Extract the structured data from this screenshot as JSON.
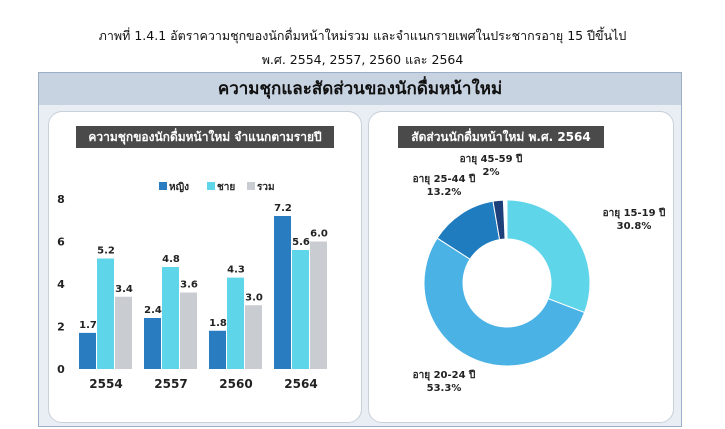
{
  "title": {
    "line1": "ภาพที่ 1.4.1 อัตราความชุกของนักดื่มหน้าใหม่รวม และจำแนกรายเพศในประชากรอายุ 15 ปีขึ้นไป",
    "line2": "พ.ศ. 2554, 2557, 2560 และ 2564"
  },
  "header": "ความชุกและสัดส่วนของนักดื่มหน้าใหม่",
  "chart_data": [
    {
      "type": "bar",
      "title": "ความชุกของนักดื่มหน้าใหม่ จำแนกตามรายปี",
      "categories": [
        "2554",
        "2557",
        "2560",
        "2564"
      ],
      "series": [
        {
          "name": "หญิง",
          "color": "#2a7cc0",
          "values": [
            1.7,
            2.4,
            1.8,
            7.2
          ]
        },
        {
          "name": "ชาย",
          "color": "#5fd5ea",
          "values": [
            5.2,
            4.8,
            4.3,
            5.6
          ]
        },
        {
          "name": "รวม",
          "color": "#c9ccd1",
          "values": [
            3.4,
            3.6,
            3.0,
            6.0
          ]
        }
      ],
      "yticks": [
        "0",
        "2",
        "4",
        "6",
        "8"
      ],
      "ylim": [
        0,
        8
      ],
      "legend": "top"
    },
    {
      "type": "pie",
      "title": "สัดส่วนนักดื่มหน้าใหม่ พ.ศ. 2564",
      "slices": [
        {
          "label": "อายุ 15-19 ปี",
          "value": 30.8,
          "text": "30.8%",
          "color": "#5fd5ea"
        },
        {
          "label": "อายุ 20-24  ปี",
          "value": 53.3,
          "text": "53.3%",
          "color": "#4bb2e5"
        },
        {
          "label": "อายุ 25-44  ปี",
          "value": 13.2,
          "text": "13.2%",
          "color": "#1f7cbf"
        },
        {
          "label": "อายุ 45-59 ปี",
          "value": 2,
          "text": "2%",
          "color": "#1d3f7a"
        }
      ]
    }
  ]
}
